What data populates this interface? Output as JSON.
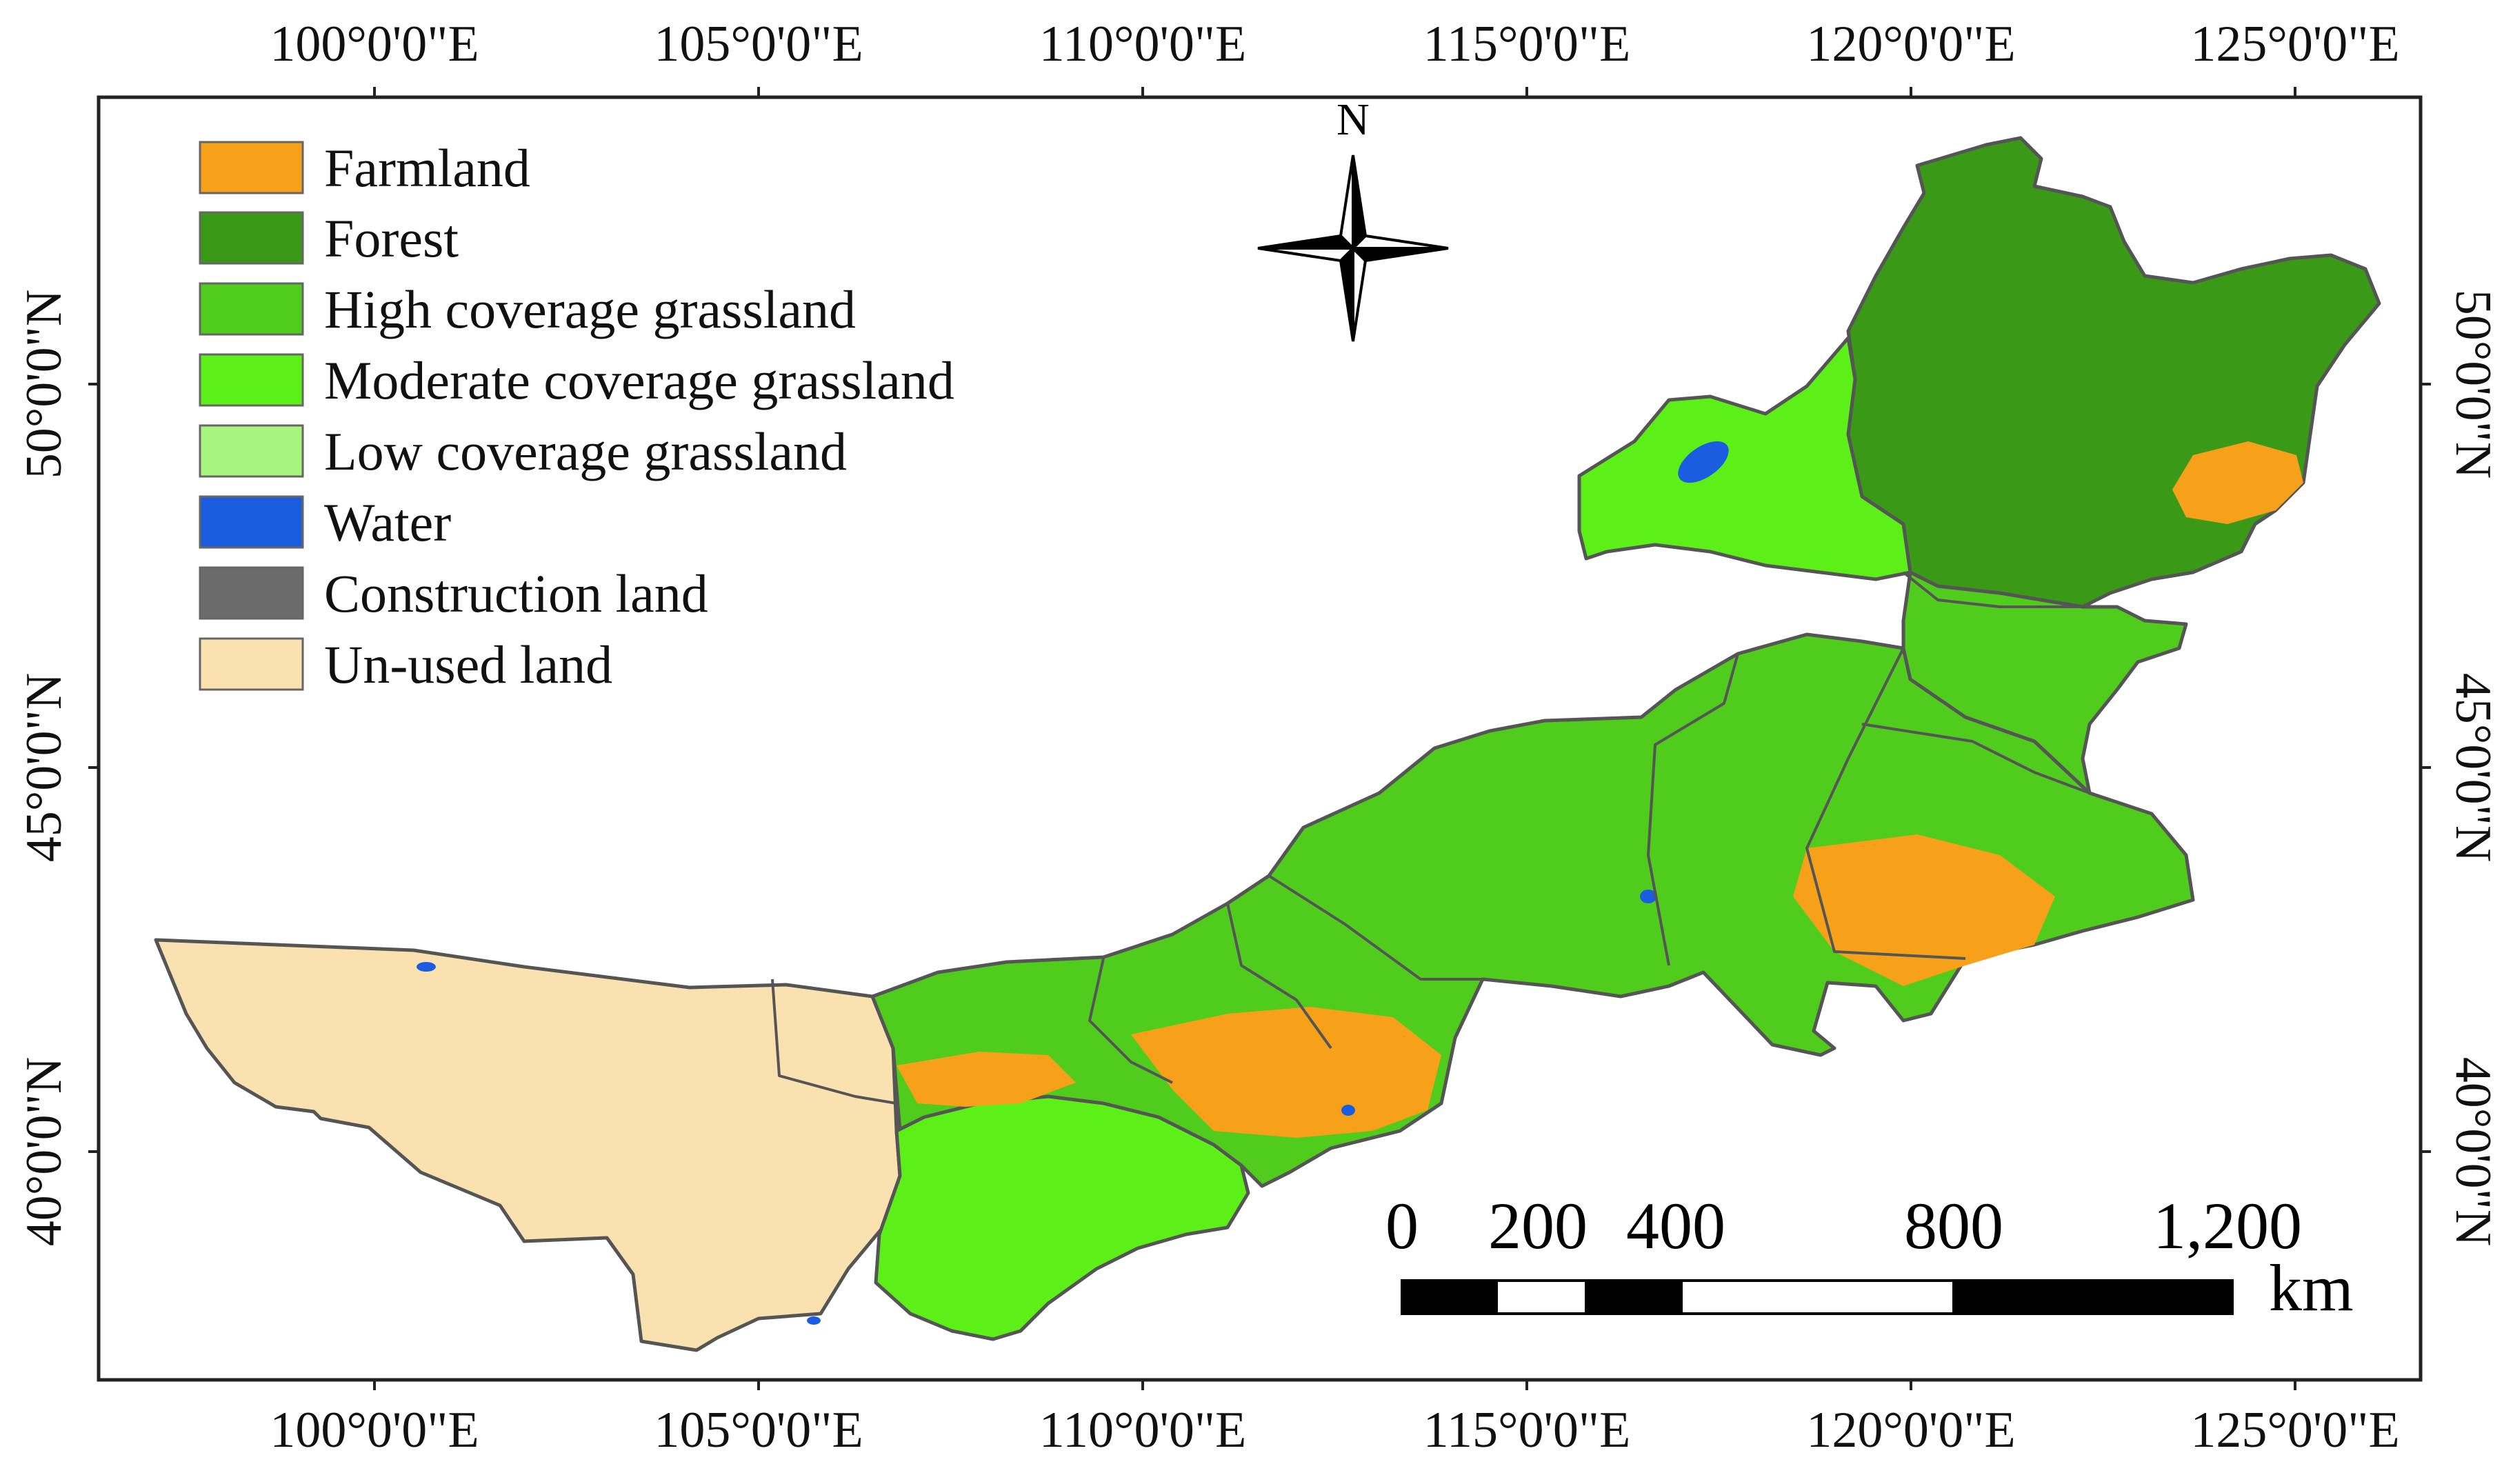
{
  "map": {
    "lon_labels": [
      "100°0'0\"E",
      "105°0'0\"E",
      "110°0'0\"E",
      "115°0'0\"E",
      "120°0'0\"E",
      "125°0'0\"E"
    ],
    "lat_labels": [
      "50°0'0\"N",
      "45°0'0\"N",
      "40°0'0\"N"
    ],
    "north_label": "N",
    "legend": [
      {
        "label": "Farmland",
        "color": "#f7a11a"
      },
      {
        "label": "Forest",
        "color": "#3a9a17"
      },
      {
        "label": "High coverage grassland",
        "color": "#4fcc1c"
      },
      {
        "label": "Moderate coverage grassland",
        "color": "#5df018"
      },
      {
        "label": "Low coverage grassland",
        "color": "#a7f47f"
      },
      {
        "label": "Water",
        "color": "#1a5de0"
      },
      {
        "label": "Construction land",
        "color": "#6b6b6b"
      },
      {
        "label": "Un-used land",
        "color": "#f9e1b0"
      }
    ],
    "scale_bar": {
      "labels": [
        "0",
        "200",
        "400",
        "800",
        "1,200"
      ],
      "unit": "km"
    }
  }
}
